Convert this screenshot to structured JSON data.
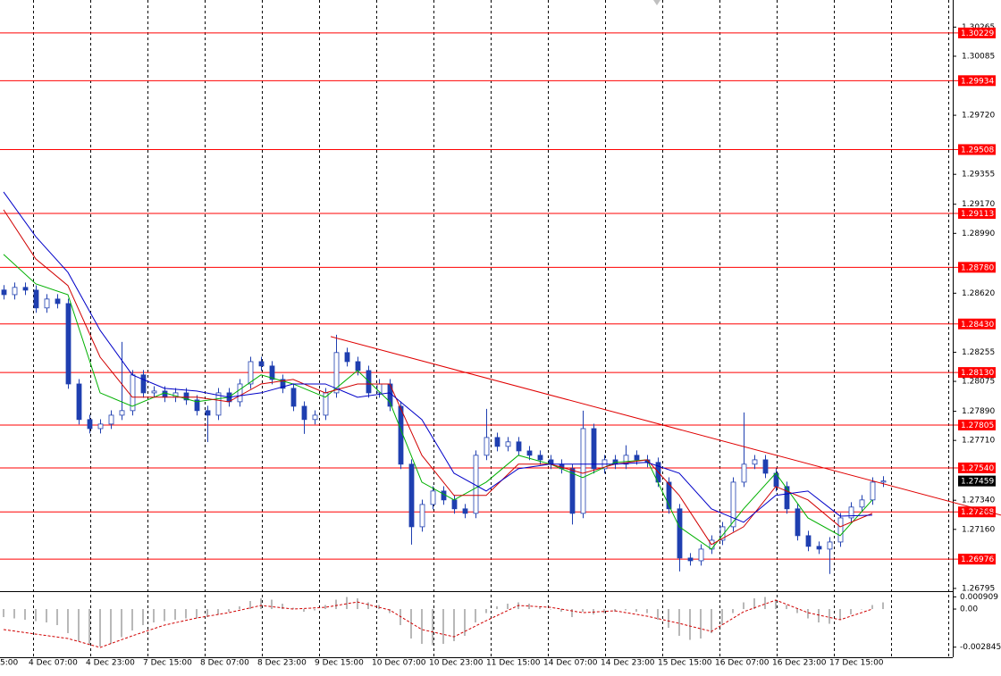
{
  "chart_data": {
    "type": "candlestick",
    "color": "#1f3fb0",
    "ylim": [
      1.26778,
      1.30405
    ],
    "yticks": [
      1.30265,
      1.30085,
      {
        "value": 1.2972,
        "label": "1.29720"
      },
      1.29355,
      {
        "value": 1.2917,
        "label": "1.29170"
      },
      {
        "value": 1.2899,
        "label": "1.28990"
      },
      {
        "value": 1.2862,
        "label": "1.28620"
      },
      1.28255,
      1.28075,
      {
        "value": 1.2789,
        "label": "1.27890"
      },
      {
        "value": 1.2771,
        "label": "1.27710"
      },
      {
        "value": 1.2734,
        "label": "1.27340"
      },
      {
        "value": 1.2716,
        "label": "1.27160"
      },
      1.26795
    ],
    "open": [
      1.2864,
      1.28611,
      1.28656,
      1.28639,
      1.28529,
      1.28584,
      1.28556,
      1.28059,
      1.27839,
      1.27783,
      1.27811,
      1.27866,
      1.27894,
      1.28115,
      1.28004,
      1.28015,
      1.27977,
      1.28004,
      1.2796,
      1.27894,
      1.27866,
      1.28004,
      1.27949,
      1.28059,
      1.28197,
      1.2817,
      1.28087,
      1.28032,
      1.27921,
      1.27839,
      1.27866,
      1.28004,
      1.28253,
      1.28197,
      1.28142,
      1.28004,
      1.28059,
      1.27921,
      1.27563,
      1.27176,
      1.27314,
      1.27397,
      1.27342,
      1.27287,
      1.27259,
      1.27618,
      1.27728,
      1.27673,
      1.27701,
      1.27645,
      1.27618,
      1.2759,
      1.27563,
      1.27535,
      1.27259,
      1.27783,
      1.27535,
      1.2759,
      1.27563,
      1.27618,
      1.2759,
      1.27574,
      1.27452,
      1.27287,
      1.26983,
      1.26966,
      1.27038,
      1.27093,
      1.27176,
      1.27452,
      1.27563,
      1.2759,
      1.27507,
      1.27425,
      1.27287,
      1.27121,
      1.27055,
      1.27038,
      1.27082,
      1.27231,
      1.27298,
      1.27342,
      1.27452
    ],
    "high": [
      1.2867,
      1.28686,
      1.28686,
      1.28669,
      1.28614,
      1.28614,
      1.28586,
      1.28089,
      1.27869,
      1.27841,
      1.27896,
      1.28319,
      1.28145,
      1.28145,
      1.28045,
      1.28045,
      1.28034,
      1.28034,
      1.2799,
      1.27924,
      1.28034,
      1.28034,
      1.28089,
      1.28227,
      1.28227,
      1.282,
      1.28117,
      1.28062,
      1.27951,
      1.27896,
      1.28034,
      1.28363,
      1.28283,
      1.28227,
      1.28172,
      1.28089,
      1.28089,
      1.27951,
      1.27593,
      1.27344,
      1.27427,
      1.27427,
      1.27372,
      1.27317,
      1.27648,
      1.27905,
      1.27758,
      1.27731,
      1.27731,
      1.27675,
      1.27648,
      1.2762,
      1.27593,
      1.27565,
      1.27894,
      1.27813,
      1.2762,
      1.2762,
      1.2768,
      1.27648,
      1.2762,
      1.27604,
      1.27482,
      1.27317,
      1.27013,
      1.27068,
      1.27123,
      1.27206,
      1.27482,
      1.27883,
      1.2762,
      1.2762,
      1.27537,
      1.27455,
      1.27317,
      1.27151,
      1.27085,
      1.27112,
      1.27261,
      1.27328,
      1.27372,
      1.27482,
      1.27489
    ],
    "low": [
      1.28581,
      1.28581,
      1.28609,
      1.28499,
      1.28499,
      1.28526,
      1.28029,
      1.27809,
      1.27753,
      1.27753,
      1.27781,
      1.27836,
      1.27864,
      1.27974,
      1.27974,
      1.27947,
      1.27947,
      1.2793,
      1.27864,
      1.277,
      1.27836,
      1.27919,
      1.27919,
      1.28029,
      1.2814,
      1.28057,
      1.28002,
      1.27891,
      1.2775,
      1.27809,
      1.27836,
      1.27974,
      1.28167,
      1.28112,
      1.27974,
      1.27974,
      1.27891,
      1.27533,
      1.27066,
      1.27146,
      1.27284,
      1.27312,
      1.27257,
      1.27229,
      1.27229,
      1.27588,
      1.27643,
      1.27643,
      1.27615,
      1.27588,
      1.2756,
      1.27533,
      1.27505,
      1.2719,
      1.27229,
      1.27505,
      1.27505,
      1.27533,
      1.27533,
      1.2756,
      1.27544,
      1.27422,
      1.27257,
      1.269,
      1.26936,
      1.26936,
      1.27008,
      1.27063,
      1.27146,
      1.27422,
      1.27533,
      1.27477,
      1.27395,
      1.27257,
      1.27091,
      1.27025,
      1.27008,
      1.26884,
      1.27052,
      1.27201,
      1.27268,
      1.27312,
      1.27422
    ],
    "close": [
      1.28611,
      1.28656,
      1.28639,
      1.28529,
      1.28584,
      1.28556,
      1.28059,
      1.27839,
      1.27783,
      1.27811,
      1.27866,
      1.27894,
      1.28115,
      1.28004,
      1.28015,
      1.27977,
      1.28004,
      1.2796,
      1.27894,
      1.27866,
      1.28004,
      1.27949,
      1.28059,
      1.28197,
      1.2817,
      1.28087,
      1.28032,
      1.27921,
      1.27839,
      1.27866,
      1.28004,
      1.28253,
      1.28197,
      1.28142,
      1.28004,
      1.28059,
      1.27921,
      1.27563,
      1.27176,
      1.27314,
      1.27397,
      1.27342,
      1.27287,
      1.27259,
      1.27618,
      1.27728,
      1.27673,
      1.27701,
      1.27645,
      1.27618,
      1.2759,
      1.27563,
      1.27535,
      1.27259,
      1.27783,
      1.27535,
      1.2759,
      1.27563,
      1.27618,
      1.2759,
      1.27574,
      1.27452,
      1.27287,
      1.26983,
      1.26966,
      1.27038,
      1.27093,
      1.27176,
      1.27452,
      1.27563,
      1.2759,
      1.27507,
      1.27425,
      1.27287,
      1.27121,
      1.27055,
      1.27038,
      1.27082,
      1.27231,
      1.27298,
      1.27342,
      1.27452,
      1.27459
    ],
    "moving_averages": {
      "index": [
        0,
        3,
        6,
        9,
        12,
        15,
        18,
        21,
        24,
        27,
        30,
        33,
        36,
        39,
        42,
        45,
        48,
        51,
        54,
        57,
        60,
        63,
        66,
        69,
        72,
        75,
        78,
        81
      ],
      "series": [
        {
          "color": "#00b000",
          "values": [
            1.2886,
            1.28678,
            1.28611,
            1.28004,
            1.27921,
            1.28004,
            1.27949,
            1.27977,
            1.28115,
            1.28059,
            1.27977,
            1.28142,
            1.27949,
            1.27452,
            1.27342,
            1.27452,
            1.27618,
            1.27563,
            1.2748,
            1.27574,
            1.2759,
            1.27176,
            1.27038,
            1.27287,
            1.27507,
            1.27231,
            1.27121,
            1.27342
          ]
        },
        {
          "color": "#d00000",
          "values": [
            1.29136,
            1.28832,
            1.28667,
            1.28225,
            1.27977,
            1.27977,
            1.27977,
            1.27949,
            1.28059,
            1.28087,
            1.28004,
            1.28059,
            1.28059,
            1.27618,
            1.2737,
            1.2737,
            1.27563,
            1.27563,
            1.27507,
            1.27563,
            1.2759,
            1.2737,
            1.27066,
            1.27176,
            1.27425,
            1.27342,
            1.27176,
            1.27259
          ]
        },
        {
          "color": "#0000c8",
          "values": [
            1.29246,
            1.2897,
            1.28749,
            1.28391,
            1.28115,
            1.28032,
            1.28015,
            1.27977,
            1.28004,
            1.28059,
            1.28059,
            1.27977,
            1.28004,
            1.27839,
            1.27507,
            1.27397,
            1.27535,
            1.27563,
            1.27563,
            1.27563,
            1.27574,
            1.27507,
            1.27287,
            1.27204,
            1.2737,
            1.27397,
            1.27242,
            1.27248
          ]
        }
      ]
    },
    "trend_line": {
      "color": "#e00000",
      "x": [
        30.5,
        93
      ],
      "values": [
        1.28352,
        1.27248
      ]
    },
    "levels": {
      "color": "#ff0000",
      "values": [
        1.30229,
        1.29934,
        1.29508,
        1.29113,
        {
          "value": 1.2878,
          "label": "1.28780"
        },
        {
          "value": 1.2843,
          "label": "1.28430"
        },
        {
          "value": 1.2813,
          "label": "1.28130"
        },
        1.27805,
        {
          "value": 1.2754,
          "label": "1.27540"
        },
        1.27268,
        1.26976
      ]
    },
    "current_price": 1.27459,
    "oscillator": {
      "color": "#b8b8b8",
      "ylim": [
        -0.0036,
        0.00127
      ],
      "yticks": [
        0.000909,
        {
          "value": 0,
          "label": "0.00"
        },
        -0.002845
      ],
      "values": [
        -0.0006,
        -0.0007,
        -0.0008,
        -0.0009,
        -0.001,
        -0.0012,
        -0.0018,
        -0.0024,
        -0.0027,
        -0.0028,
        -0.0026,
        -0.0021,
        -0.0016,
        -0.0012,
        -0.001,
        -0.0009,
        -0.0008,
        -0.0007,
        -0.0007,
        -0.0006,
        -0.0004,
        -0.0002,
        0.0002,
        0.0006,
        0.0008,
        0.0007,
        0.0004,
        0.0001,
        -0.0002,
        -0.0001,
        0.0003,
        0.0007,
        0.0009,
        0.0008,
        0.0005,
        0.0003,
        -0.0003,
        -0.0012,
        -0.0022,
        -0.0026,
        -0.0027,
        -0.0026,
        -0.0024,
        -0.002,
        -0.001,
        -0.0003,
        0.0002,
        0.0004,
        0.0005,
        0.0004,
        0.0002,
        0.0,
        -0.0002,
        -0.0006,
        -0.0002,
        -0.0004,
        -0.0003,
        -0.0002,
        -0.0001,
        -0.0002,
        -0.0003,
        -0.0008,
        -0.0014,
        -0.002,
        -0.0023,
        -0.0022,
        -0.0018,
        -0.0012,
        -0.0003,
        0.0005,
        0.0008,
        0.0009,
        0.0007,
        0.0003,
        -0.0003,
        -0.0007,
        -0.001,
        -0.0011,
        -0.0008,
        -0.0004,
        0.0,
        0.0003,
        0.0005
      ],
      "signal": {
        "color": "#d00000",
        "values": [
          -0.00153,
          -0.00187,
          -0.0022,
          -0.00287,
          -0.002,
          -0.0012,
          -0.00067,
          -0.00027,
          0.00027,
          0,
          0.00013,
          0.00053,
          -7e-05,
          -0.00153,
          -0.00207,
          -0.00087,
          0.00027,
          0.00013,
          -0.00027,
          -0.00013,
          -0.00053,
          -0.00107,
          -0.00167,
          -0.0002,
          0.00067,
          -0.00027,
          -0.0008,
          0
        ]
      }
    },
    "time_labels": [
      "5:00",
      "4 Dec 07:00",
      "4 Dec 23:00",
      "7 Dec 15:00",
      "8 Dec 07:00",
      "8 Dec 23:00",
      "9 Dec 15:00",
      "10 Dec 07:00",
      "10 Dec 23:00",
      "11 Dec 15:00",
      "14 Dec 07:00",
      "14 Dec 23:00",
      "15 Dec 15:00",
      "16 Dec 07:00",
      "16 Dec 23:00",
      "17 Dec 15:00"
    ]
  }
}
